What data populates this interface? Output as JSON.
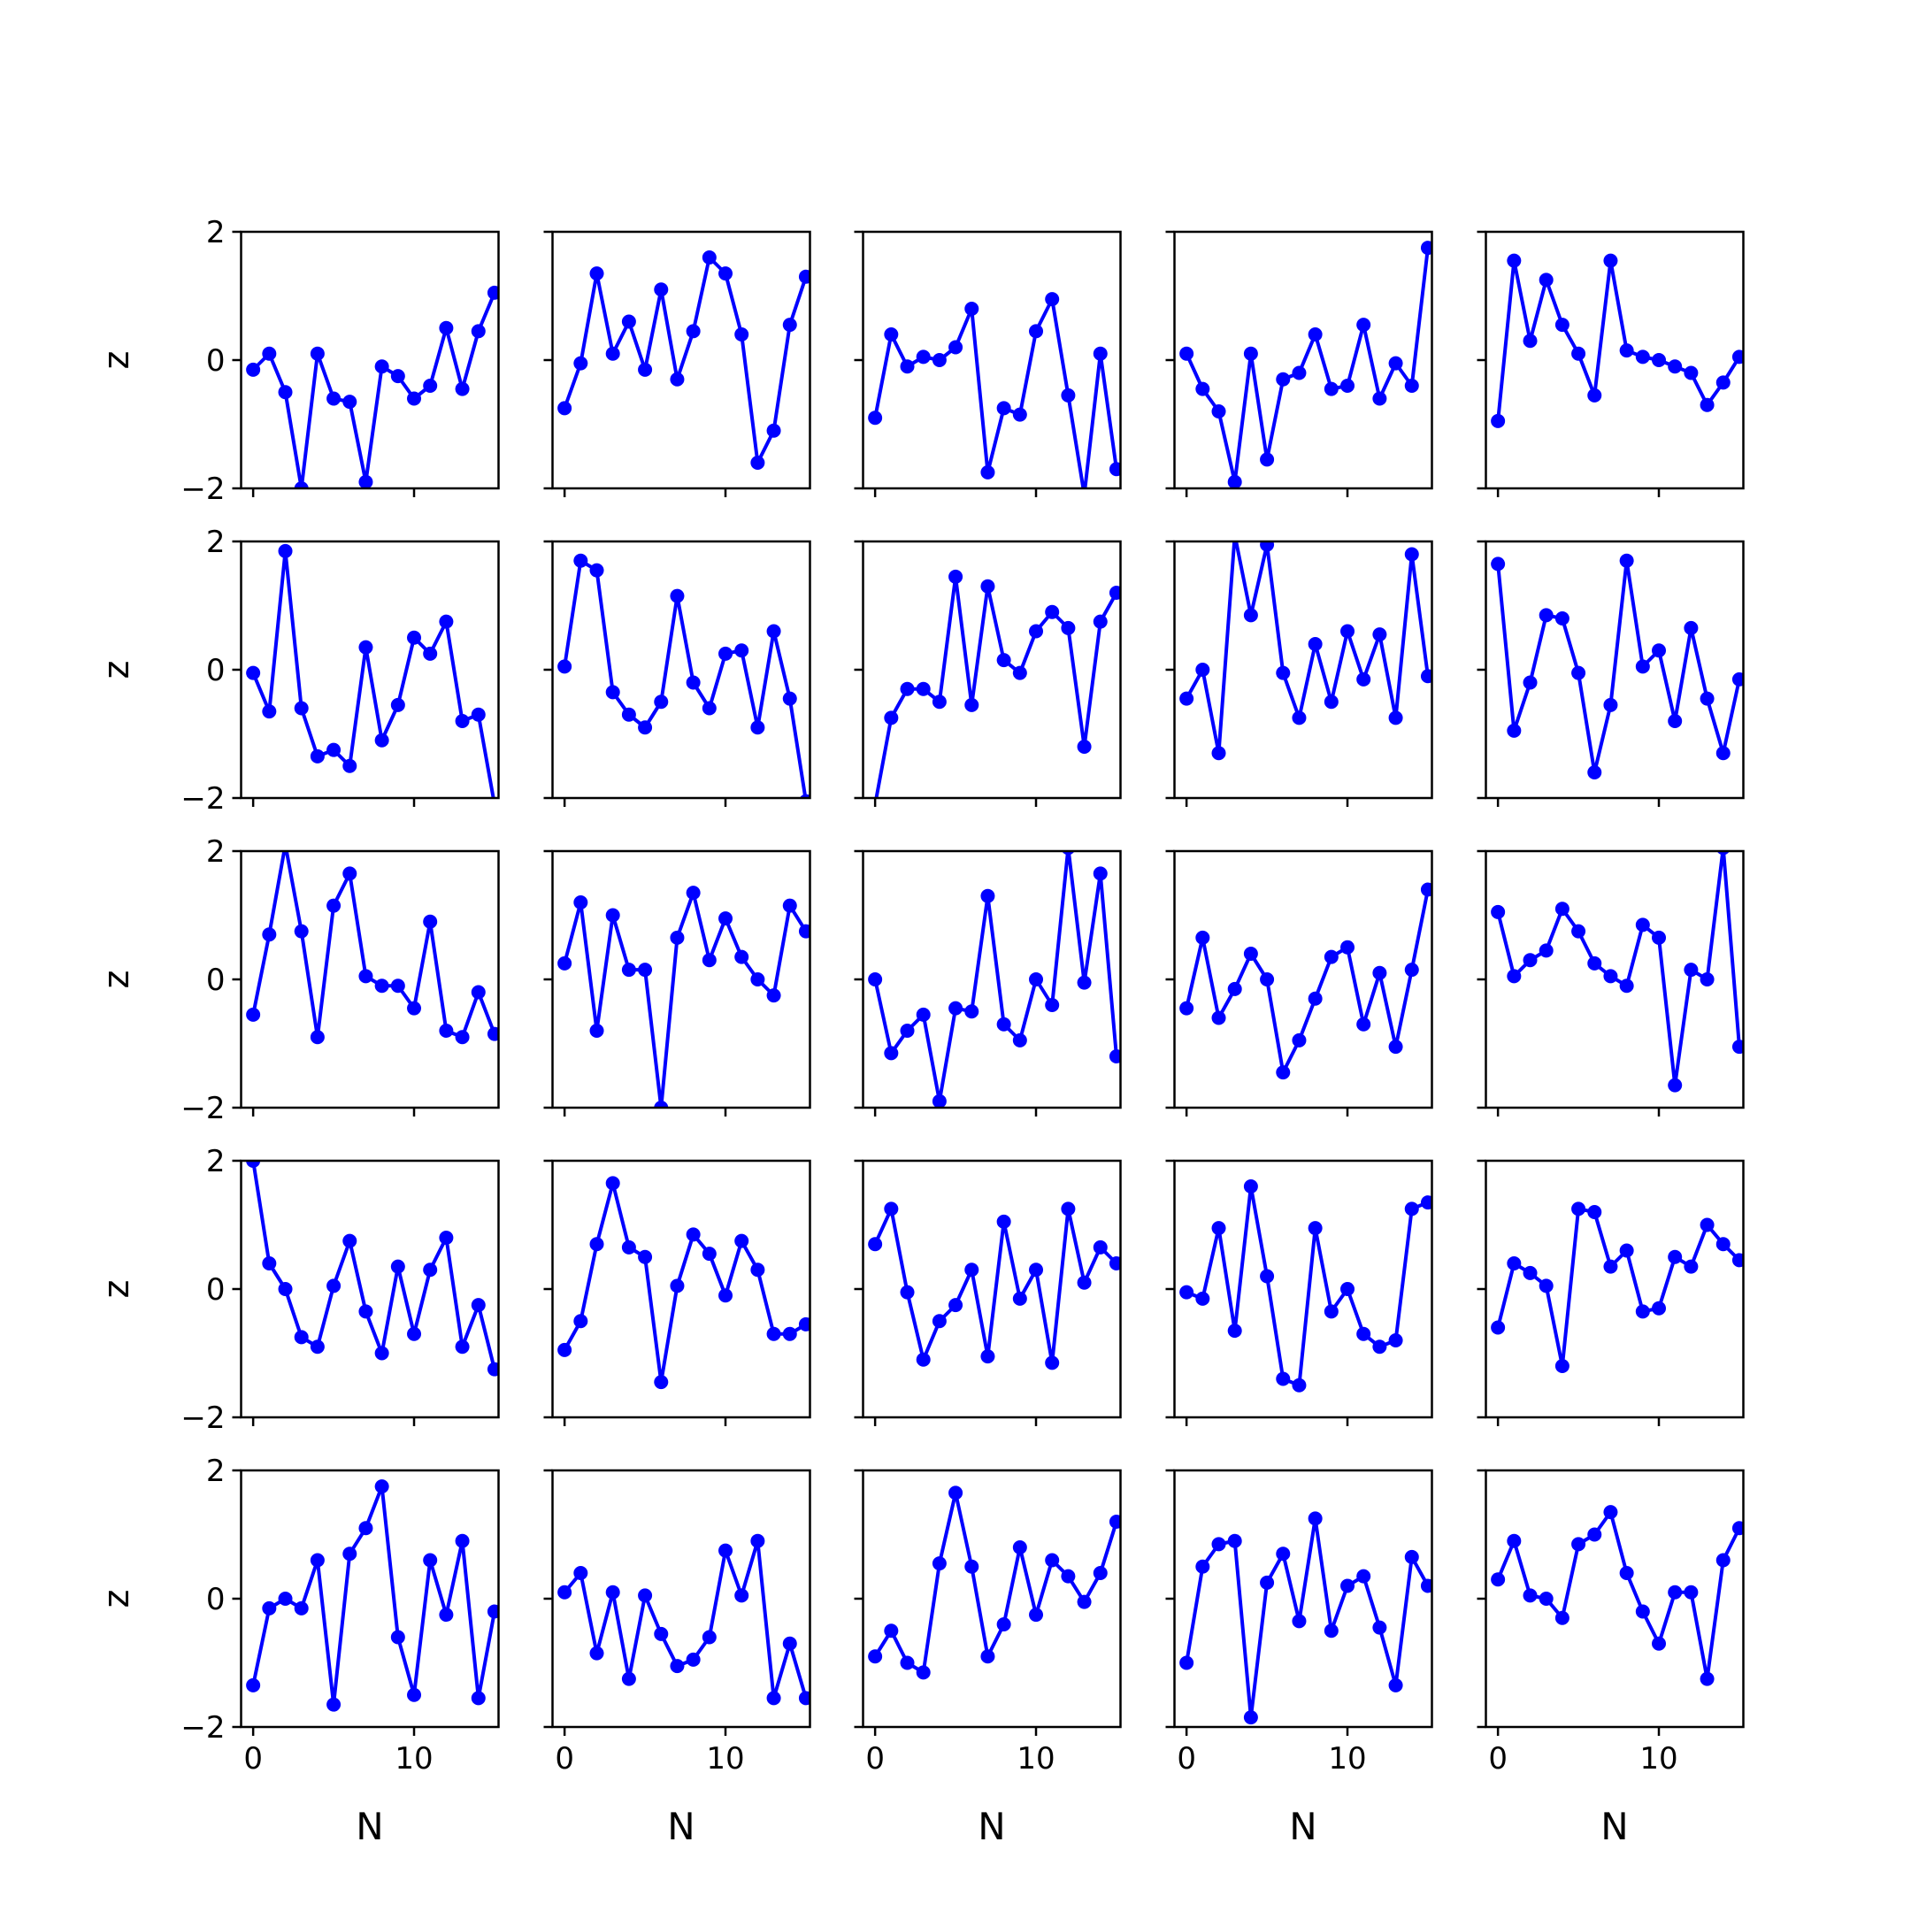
{
  "figure": {
    "line_color": "#0000ff",
    "axis_color": "#000000",
    "rows": 5,
    "cols": 5
  },
  "chart_data": {
    "type": "line",
    "xlabel": "N",
    "ylabel": "z",
    "xlim": [
      -0.75,
      15.25
    ],
    "ylim": [
      -2,
      2
    ],
    "xticks": [
      0,
      10
    ],
    "yticks": [
      -2,
      0,
      2
    ],
    "xtick_labels": [
      "0",
      "10"
    ],
    "ytick_labels": [
      "−2",
      "0",
      "2"
    ],
    "grid": false,
    "x": [
      0,
      1,
      2,
      3,
      4,
      5,
      6,
      7,
      8,
      9,
      10,
      11,
      12,
      13,
      14,
      15
    ],
    "panels": [
      {
        "row": 0,
        "col": 0,
        "values": [
          -0.15,
          0.1,
          -0.5,
          -2.0,
          0.1,
          -0.6,
          -0.65,
          -1.9,
          -0.1,
          -0.25,
          -0.6,
          -0.4,
          0.5,
          -0.45,
          0.45,
          1.05
        ]
      },
      {
        "row": 0,
        "col": 1,
        "values": [
          -0.75,
          -0.05,
          1.35,
          0.1,
          0.6,
          -0.15,
          1.1,
          -0.3,
          0.45,
          1.6,
          1.35,
          0.4,
          -1.6,
          -1.1,
          0.55,
          1.3
        ]
      },
      {
        "row": 0,
        "col": 2,
        "values": [
          -0.9,
          0.4,
          -0.1,
          0.05,
          0.0,
          0.2,
          0.8,
          -1.75,
          -0.75,
          -0.85,
          0.45,
          0.95,
          -0.55,
          -2.1,
          0.1,
          -1.7
        ]
      },
      {
        "row": 0,
        "col": 3,
        "values": [
          0.1,
          -0.45,
          -0.8,
          -1.9,
          0.1,
          -1.55,
          -0.3,
          -0.2,
          0.4,
          -0.45,
          -0.4,
          0.55,
          -0.6,
          -0.05,
          -0.4,
          1.75
        ]
      },
      {
        "row": 0,
        "col": 4,
        "values": [
          -0.95,
          1.55,
          0.3,
          1.25,
          0.55,
          0.1,
          -0.55,
          1.55,
          0.15,
          0.05,
          0.0,
          -0.1,
          -0.2,
          -0.7,
          -0.35,
          0.05
        ]
      },
      {
        "row": 1,
        "col": 0,
        "values": [
          -0.05,
          -0.65,
          1.85,
          -0.6,
          -1.35,
          -1.25,
          -1.5,
          0.35,
          -1.1,
          -0.55,
          0.5,
          0.25,
          0.75,
          -0.8,
          -0.7,
          -2.1
        ]
      },
      {
        "row": 1,
        "col": 1,
        "values": [
          0.05,
          1.7,
          1.55,
          -0.35,
          -0.7,
          -0.9,
          -0.5,
          1.15,
          -0.2,
          -0.6,
          0.25,
          0.3,
          -0.9,
          0.6,
          -0.45,
          -2.05
        ]
      },
      {
        "row": 1,
        "col": 2,
        "values": [
          -2.1,
          -0.75,
          -0.3,
          -0.3,
          -0.5,
          1.45,
          -0.55,
          1.3,
          0.15,
          -0.05,
          0.6,
          0.9,
          0.65,
          -1.2,
          0.75,
          1.2
        ]
      },
      {
        "row": 1,
        "col": 3,
        "values": [
          -0.45,
          0.0,
          -1.3,
          2.1,
          0.85,
          1.95,
          -0.05,
          -0.75,
          0.4,
          -0.5,
          0.6,
          -0.15,
          0.55,
          -0.75,
          1.8,
          -0.1
        ]
      },
      {
        "row": 1,
        "col": 4,
        "values": [
          1.65,
          -0.95,
          -0.2,
          0.85,
          0.8,
          -0.05,
          -1.6,
          -0.55,
          1.7,
          0.05,
          0.3,
          -0.8,
          0.65,
          -0.45,
          -1.3,
          -0.15
        ]
      },
      {
        "row": 2,
        "col": 0,
        "values": [
          -0.55,
          0.7,
          2.1,
          0.75,
          -0.9,
          1.15,
          1.65,
          0.05,
          -0.1,
          -0.1,
          -0.45,
          0.9,
          -0.8,
          -0.9,
          -0.2,
          -0.85
        ]
      },
      {
        "row": 2,
        "col": 1,
        "values": [
          0.25,
          1.2,
          -0.8,
          1.0,
          0.15,
          0.15,
          -2.0,
          0.65,
          1.35,
          0.3,
          0.95,
          0.35,
          0.0,
          -0.25,
          1.15,
          0.75
        ]
      },
      {
        "row": 2,
        "col": 2,
        "values": [
          0.0,
          -1.15,
          -0.8,
          -0.55,
          -1.9,
          -0.45,
          -0.5,
          1.3,
          -0.7,
          -0.95,
          0.0,
          -0.4,
          2.05,
          -0.05,
          1.65,
          -1.2
        ]
      },
      {
        "row": 2,
        "col": 3,
        "values": [
          -0.45,
          0.65,
          -0.6,
          -0.15,
          0.4,
          0.0,
          -1.45,
          -0.95,
          -0.3,
          0.35,
          0.5,
          -0.7,
          0.1,
          -1.05,
          0.15,
          1.4
        ]
      },
      {
        "row": 2,
        "col": 4,
        "values": [
          1.05,
          0.05,
          0.3,
          0.45,
          1.1,
          0.75,
          0.25,
          0.05,
          -0.1,
          0.85,
          0.65,
          -1.65,
          0.15,
          0.0,
          2.05,
          -1.05
        ]
      },
      {
        "row": 3,
        "col": 0,
        "values": [
          2.0,
          0.4,
          0.0,
          -0.75,
          -0.9,
          0.05,
          0.75,
          -0.35,
          -1.0,
          0.35,
          -0.7,
          0.3,
          0.8,
          -0.9,
          -0.25,
          -1.25
        ]
      },
      {
        "row": 3,
        "col": 1,
        "values": [
          -0.95,
          -0.5,
          0.7,
          1.65,
          0.65,
          0.5,
          -1.45,
          0.05,
          0.85,
          0.55,
          -0.1,
          0.75,
          0.3,
          -0.7,
          -0.7,
          -0.55
        ]
      },
      {
        "row": 3,
        "col": 2,
        "values": [
          0.7,
          1.25,
          -0.05,
          -1.1,
          -0.5,
          -0.25,
          0.3,
          -1.05,
          1.05,
          -0.15,
          0.3,
          -1.15,
          1.25,
          0.1,
          0.65,
          0.4
        ]
      },
      {
        "row": 3,
        "col": 3,
        "values": [
          -0.05,
          -0.15,
          0.95,
          -0.65,
          1.6,
          0.2,
          -1.4,
          -1.5,
          0.95,
          -0.35,
          0.0,
          -0.7,
          -0.9,
          -0.8,
          1.25,
          1.35
        ]
      },
      {
        "row": 3,
        "col": 4,
        "values": [
          -0.6,
          0.4,
          0.25,
          0.05,
          -1.2,
          1.25,
          1.2,
          0.35,
          0.6,
          -0.35,
          -0.3,
          0.5,
          0.35,
          1.0,
          0.7,
          0.45
        ]
      },
      {
        "row": 4,
        "col": 0,
        "values": [
          -1.35,
          -0.15,
          0.0,
          -0.15,
          0.6,
          -1.65,
          0.7,
          1.1,
          1.75,
          -0.6,
          -1.5,
          0.6,
          -0.25,
          0.9,
          -1.55,
          -0.2
        ]
      },
      {
        "row": 4,
        "col": 1,
        "values": [
          0.1,
          0.4,
          -0.85,
          0.1,
          -1.25,
          0.05,
          -0.55,
          -1.05,
          -0.95,
          -0.6,
          0.75,
          0.05,
          0.9,
          -1.55,
          -0.7,
          -1.55
        ]
      },
      {
        "row": 4,
        "col": 2,
        "values": [
          -0.9,
          -0.5,
          -1.0,
          -1.15,
          0.55,
          1.65,
          0.5,
          -0.9,
          -0.4,
          0.8,
          -0.25,
          0.6,
          0.35,
          -0.05,
          0.4,
          1.2
        ]
      },
      {
        "row": 4,
        "col": 3,
        "values": [
          -1.0,
          0.5,
          0.85,
          0.9,
          -1.85,
          0.25,
          0.7,
          -0.35,
          1.25,
          -0.5,
          0.2,
          0.35,
          -0.45,
          -1.35,
          0.65,
          0.2
        ]
      },
      {
        "row": 4,
        "col": 4,
        "values": [
          0.3,
          0.9,
          0.05,
          0.0,
          -0.3,
          0.85,
          1.0,
          1.35,
          0.4,
          -0.2,
          -0.7,
          0.1,
          0.1,
          -1.25,
          0.6,
          1.1
        ]
      }
    ]
  }
}
